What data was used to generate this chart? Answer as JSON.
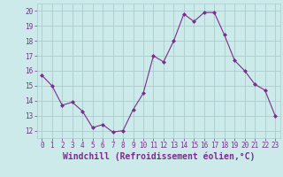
{
  "x": [
    0,
    1,
    2,
    3,
    4,
    5,
    6,
    7,
    8,
    9,
    10,
    11,
    12,
    13,
    14,
    15,
    16,
    17,
    18,
    19,
    20,
    21,
    22,
    23
  ],
  "y": [
    15.7,
    15.0,
    13.7,
    13.9,
    13.3,
    12.2,
    12.4,
    11.9,
    12.0,
    13.4,
    14.5,
    17.0,
    16.6,
    18.0,
    19.8,
    19.3,
    19.9,
    19.9,
    18.4,
    16.7,
    16.0,
    15.1,
    14.7,
    13.0
  ],
  "line_color": "#7b2d8b",
  "marker": "D",
  "marker_size": 2,
  "bg_color": "#cceaea",
  "grid_color": "#aacccc",
  "xlabel": "Windchill (Refroidissement éolien,°C)",
  "xlabel_color": "#7b2d8b",
  "xlim": [
    -0.5,
    23.5
  ],
  "ylim": [
    11.5,
    20.5
  ],
  "yticks": [
    12,
    13,
    14,
    15,
    16,
    17,
    18,
    19,
    20
  ],
  "xticks": [
    0,
    1,
    2,
    3,
    4,
    5,
    6,
    7,
    8,
    9,
    10,
    11,
    12,
    13,
    14,
    15,
    16,
    17,
    18,
    19,
    20,
    21,
    22,
    23
  ],
  "tick_color": "#7b2d8b",
  "tick_fontsize": 5.5,
  "xlabel_fontsize": 7,
  "ylabel_fontsize": 5.5
}
